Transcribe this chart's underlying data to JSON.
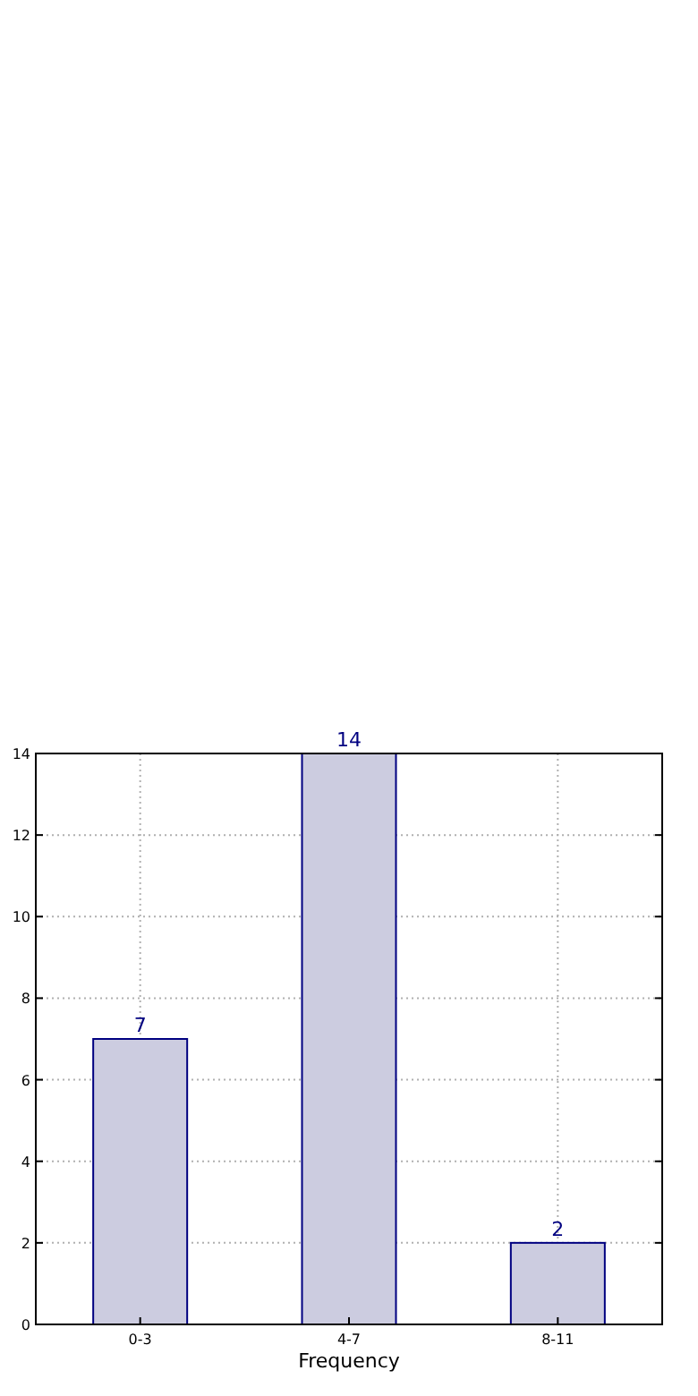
{
  "chart_data": {
    "type": "bar",
    "xlabel": "Frequency",
    "categories": [
      "0-3",
      "4-7",
      "8-11"
    ],
    "values": [
      7,
      14,
      2
    ],
    "color": "#cccce0",
    "ylim": [
      0,
      14
    ],
    "yticks": [
      0,
      2,
      4,
      6,
      8,
      10,
      12,
      14
    ],
    "grid": true,
    "data_labels": true
  }
}
